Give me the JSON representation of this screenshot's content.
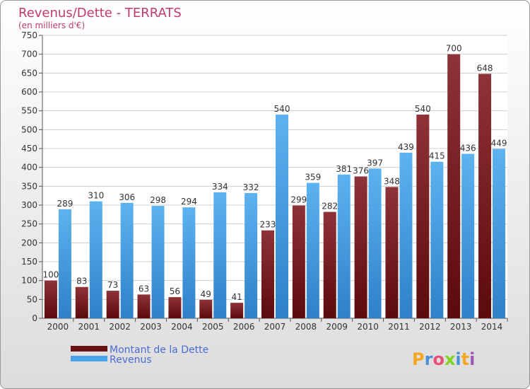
{
  "chart_data": {
    "type": "bar",
    "title": "Revenus/Dette - TERRATS",
    "subtitle": "(en milliers d'€)",
    "categories": [
      "2000",
      "2001",
      "2002",
      "2003",
      "2004",
      "2005",
      "2006",
      "2007",
      "2008",
      "2009",
      "2010",
      "2011",
      "2012",
      "2013",
      "2014"
    ],
    "series": [
      {
        "name": "Montant de la Dette",
        "color": "#8b2a2e",
        "values": [
          100,
          83,
          73,
          63,
          56,
          49,
          41,
          233,
          299,
          282,
          376,
          348,
          540,
          700,
          648
        ]
      },
      {
        "name": "Revenus",
        "color": "#4aa3e8",
        "values": [
          289,
          310,
          306,
          298,
          294,
          334,
          332,
          540,
          359,
          381,
          397,
          439,
          415,
          436,
          449
        ]
      }
    ],
    "ylim": [
      0,
      750
    ],
    "yticks": [
      0,
      50,
      100,
      150,
      200,
      250,
      300,
      350,
      400,
      450,
      500,
      550,
      600,
      650,
      700,
      750
    ],
    "grid": true,
    "legend_position": "bottom-left"
  },
  "brand": {
    "text": "Proxiti"
  }
}
